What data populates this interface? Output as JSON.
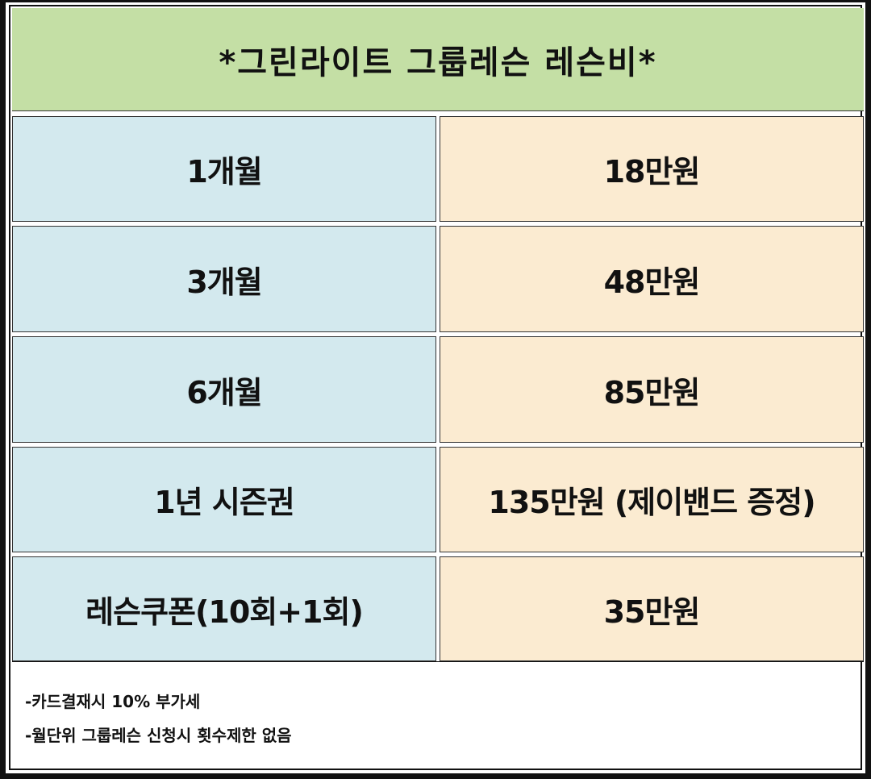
{
  "title": "*그린라이트 그룹레슨 레슨비*",
  "colors": {
    "title_bg": "#c4dfa5",
    "left_bg": "#d3e9ee",
    "right_bg": "#fbebd1"
  },
  "rows": [
    {
      "period": "1개월",
      "price": "18만원"
    },
    {
      "period": "3개월",
      "price": "48만원"
    },
    {
      "period": "6개월",
      "price": "85만원"
    },
    {
      "period": "1년 시즌권",
      "price": "135만원 (제이밴드 증정)"
    },
    {
      "period": "레슨쿠폰(10회+1회)",
      "price": "35만원"
    }
  ],
  "notes": [
    "-카드결재시 10% 부가세",
    "-월단위 그룹레슨 신청시 횟수제한 없음"
  ]
}
